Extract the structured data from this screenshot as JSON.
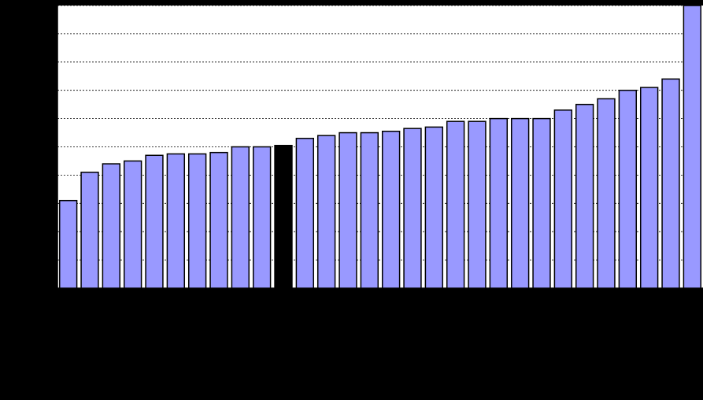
{
  "chart_data": {
    "type": "bar",
    "categories": [
      null,
      null,
      null,
      null,
      null,
      null,
      null,
      null,
      null,
      null,
      null,
      null,
      null,
      null,
      null,
      null,
      null,
      null,
      null,
      null,
      null,
      null,
      null,
      null,
      null,
      null,
      null,
      null,
      null,
      null
    ],
    "values": [
      3.1,
      4.1,
      4.4,
      4.5,
      4.7,
      4.75,
      4.75,
      4.8,
      5.0,
      5.0,
      5.05,
      5.3,
      5.4,
      5.5,
      5.5,
      5.55,
      5.65,
      5.7,
      5.9,
      5.9,
      6.0,
      6.0,
      6.0,
      6.3,
      6.5,
      6.7,
      7.0,
      7.1,
      7.4,
      10.0
    ],
    "colors": [
      "#9999ff",
      "#9999ff",
      "#9999ff",
      "#9999ff",
      "#9999ff",
      "#9999ff",
      "#9999ff",
      "#9999ff",
      "#9999ff",
      "#9999ff",
      "#000000",
      "#9999ff",
      "#9999ff",
      "#9999ff",
      "#9999ff",
      "#9999ff",
      "#9999ff",
      "#9999ff",
      "#9999ff",
      "#9999ff",
      "#9999ff",
      "#9999ff",
      "#9999ff",
      "#9999ff",
      "#9999ff",
      "#9999ff",
      "#9999ff",
      "#9999ff",
      "#9999ff",
      "#9999ff"
    ],
    "ylim": [
      0,
      10
    ],
    "yticks": [
      0,
      1,
      2,
      3,
      4,
      5,
      6,
      7,
      8,
      9,
      10
    ],
    "grid": true
  }
}
